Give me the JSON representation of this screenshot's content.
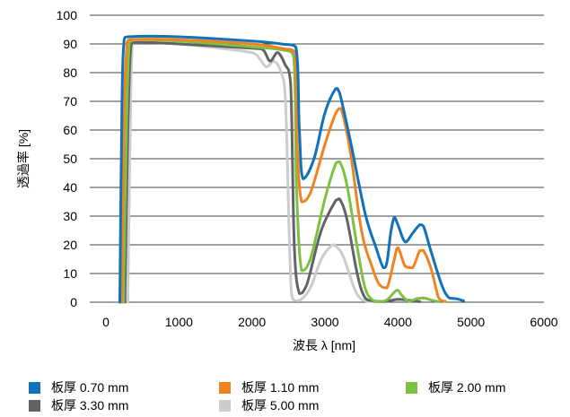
{
  "chart_data": {
    "type": "line",
    "xlabel": "波長 λ [nm]",
    "ylabel": "透過率 [%]",
    "xlim": [
      0,
      6000
    ],
    "ylim": [
      0,
      100
    ],
    "xticks": [
      "0",
      "1000",
      "2000",
      "3000",
      "4000",
      "5000",
      "6000"
    ],
    "yticks": [
      "0",
      "10",
      "20",
      "30",
      "40",
      "50",
      "60",
      "70",
      "80",
      "90",
      "100"
    ],
    "grid": "horizontal",
    "legend_position": "bottom",
    "series": [
      {
        "name": "板厚 0.70 mm",
        "color": "#1072BA",
        "x": [
          190,
          220,
          250,
          300,
          1000,
          2000,
          2400,
          2600,
          2650,
          2700,
          2850,
          3000,
          3150,
          3200,
          3350,
          3550,
          3700,
          3800,
          3850,
          3900,
          3950,
          4000,
          4100,
          4200,
          4300,
          4350,
          4450,
          4600,
          4700,
          4800,
          4900
        ],
        "y": [
          0,
          70,
          91.5,
          92.5,
          92.5,
          91,
          90,
          89,
          60,
          43,
          50,
          66,
          74.5,
          73,
          56,
          31,
          19,
          12,
          14,
          24,
          29.5,
          27,
          21,
          24,
          27,
          26.5,
          18,
          6,
          1.5,
          1.2,
          0.5
        ]
      },
      {
        "name": "板厚 1.10 mm",
        "color": "#F08321",
        "x": [
          215,
          250,
          290,
          340,
          1000,
          2000,
          2400,
          2590,
          2620,
          2680,
          2800,
          3000,
          3150,
          3220,
          3350,
          3500,
          3650,
          3750,
          3850,
          3950,
          4000,
          4100,
          4200,
          4300,
          4350,
          4450,
          4550,
          4600,
          4650
        ],
        "y": [
          0,
          65,
          90.5,
          91.5,
          91.5,
          90,
          88.5,
          87,
          55,
          35,
          38,
          55,
          66,
          67.5,
          52,
          25,
          12,
          6,
          5,
          15,
          19,
          12.5,
          12,
          18,
          18,
          12,
          2,
          0.5,
          0.3
        ]
      },
      {
        "name": "板厚 2.00 mm",
        "color": "#7DC143",
        "x": [
          240,
          280,
          320,
          380,
          1000,
          2000,
          2400,
          2570,
          2610,
          2680,
          2800,
          3000,
          3150,
          3200,
          3300,
          3450,
          3550,
          3650,
          3750,
          3850,
          3950,
          4000,
          4050,
          4150,
          4250,
          4350,
          4450,
          4550
        ],
        "y": [
          0,
          60,
          90,
          91.5,
          91,
          89,
          88,
          86,
          40,
          11,
          15,
          36,
          48.5,
          49,
          41,
          18,
          5,
          0.8,
          0.2,
          0.8,
          3.5,
          4.2,
          2.5,
          0.3,
          1.2,
          1.5,
          0.8,
          0.2
        ]
      },
      {
        "name": "板厚 3.30 mm",
        "color": "#626366",
        "x": [
          260,
          300,
          340,
          400,
          1000,
          2000,
          2150,
          2250,
          2350,
          2450,
          2530,
          2580,
          2650,
          2750,
          2950,
          3150,
          3200,
          3300,
          3450,
          3550,
          3650,
          3800,
          4000,
          4100,
          4300
        ],
        "y": [
          0,
          60,
          89,
          90.5,
          90,
          88.5,
          88,
          84,
          87,
          83,
          76,
          20,
          3,
          6,
          25,
          35.5,
          36,
          29,
          9,
          1.5,
          0.5,
          0.2,
          1,
          0.8,
          0.2
        ]
      },
      {
        "name": "板厚 5.00 mm",
        "color": "#CCCCCC",
        "x": [
          300,
          330,
          360,
          420,
          1000,
          2000,
          2100,
          2200,
          2300,
          2400,
          2460,
          2520,
          2560,
          2650,
          2800,
          2950,
          3100,
          3150,
          3250,
          3400,
          3500,
          3600,
          3700
        ],
        "y": [
          0,
          55,
          89,
          90.5,
          90,
          87,
          85,
          82,
          84,
          80,
          70,
          15,
          1,
          0.5,
          5,
          15,
          20,
          19.5,
          16,
          5,
          1,
          0.3,
          0.1
        ]
      }
    ]
  }
}
